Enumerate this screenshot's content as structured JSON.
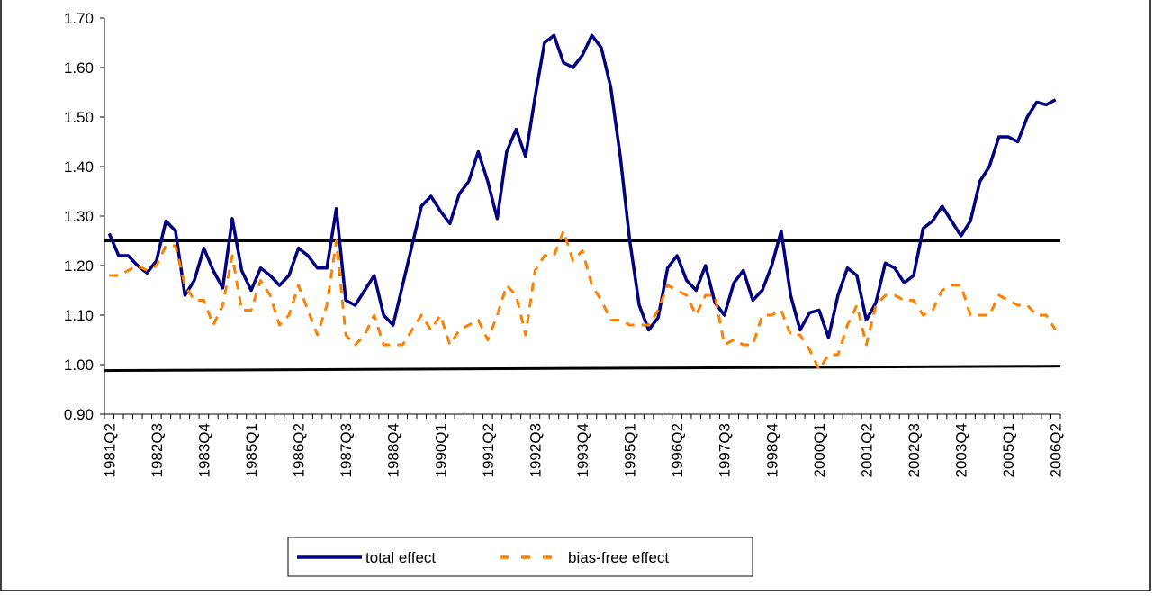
{
  "chart_data": {
    "type": "line",
    "categories": [
      "1981Q2",
      null,
      null,
      null,
      null,
      "1982Q3",
      null,
      null,
      null,
      null,
      "1983Q4",
      null,
      null,
      null,
      null,
      "1985Q1",
      null,
      null,
      null,
      null,
      "1986Q2",
      null,
      null,
      null,
      null,
      "1987Q3",
      null,
      null,
      null,
      null,
      "1988Q4",
      null,
      null,
      null,
      null,
      "1990Q1",
      null,
      null,
      null,
      null,
      "1991Q2",
      null,
      null,
      null,
      null,
      "1992Q3",
      null,
      null,
      null,
      null,
      "1993Q4",
      null,
      null,
      null,
      null,
      "1995Q1",
      null,
      null,
      null,
      null,
      "1996Q2",
      null,
      null,
      null,
      null,
      "1997Q3",
      null,
      null,
      null,
      null,
      "1998Q4",
      null,
      null,
      null,
      null,
      "2000Q1",
      null,
      null,
      null,
      null,
      "2001Q2",
      null,
      null,
      null,
      null,
      "2002Q3",
      null,
      null,
      null,
      null,
      "2003Q4",
      null,
      null,
      null,
      null,
      "2005Q1",
      null,
      null,
      null,
      null,
      "2006Q2"
    ],
    "series": [
      {
        "name": "total effect",
        "color": "#000080",
        "dash": false,
        "values": [
          1.265,
          1.22,
          1.22,
          1.2,
          1.185,
          1.21,
          1.29,
          1.27,
          1.14,
          1.17,
          1.235,
          1.19,
          1.155,
          1.295,
          1.19,
          1.15,
          1.195,
          1.18,
          1.16,
          1.18,
          1.235,
          1.22,
          1.195,
          1.195,
          1.315,
          1.13,
          1.12,
          1.15,
          1.18,
          1.1,
          1.08,
          1.16,
          1.24,
          1.32,
          1.34,
          1.31,
          1.285,
          1.345,
          1.37,
          1.43,
          1.37,
          1.295,
          1.43,
          1.475,
          1.42,
          1.54,
          1.65,
          1.665,
          1.61,
          1.6,
          1.625,
          1.665,
          1.64,
          1.56,
          1.42,
          1.25,
          1.12,
          1.07,
          1.095,
          1.195,
          1.22,
          1.17,
          1.15,
          1.2,
          1.125,
          1.1,
          1.165,
          1.19,
          1.13,
          1.15,
          1.2,
          1.27,
          1.14,
          1.07,
          1.105,
          1.11,
          1.055,
          1.14,
          1.195,
          1.18,
          1.09,
          1.125,
          1.205,
          1.195,
          1.165,
          1.18,
          1.275,
          1.29,
          1.32,
          1.29,
          1.26,
          1.29,
          1.37,
          1.4,
          1.46,
          1.46,
          1.45,
          1.5,
          1.53,
          1.525,
          1.535
        ]
      },
      {
        "name": "bias-free effect",
        "color": "#ff8000",
        "dash": true,
        "values": [
          1.18,
          1.18,
          1.19,
          1.2,
          1.19,
          1.2,
          1.24,
          1.24,
          1.16,
          1.13,
          1.13,
          1.08,
          1.12,
          1.22,
          1.11,
          1.11,
          1.17,
          1.14,
          1.08,
          1.1,
          1.16,
          1.11,
          1.06,
          1.12,
          1.25,
          1.06,
          1.04,
          1.06,
          1.1,
          1.04,
          1.04,
          1.04,
          1.07,
          1.1,
          1.07,
          1.1,
          1.04,
          1.07,
          1.08,
          1.09,
          1.05,
          1.1,
          1.16,
          1.14,
          1.06,
          1.19,
          1.22,
          1.22,
          1.27,
          1.21,
          1.23,
          1.16,
          1.13,
          1.09,
          1.09,
          1.08,
          1.08,
          1.08,
          1.11,
          1.16,
          1.15,
          1.14,
          1.1,
          1.14,
          1.14,
          1.04,
          1.05,
          1.04,
          1.04,
          1.1,
          1.1,
          1.11,
          1.06,
          1.06,
          1.03,
          0.99,
          1.02,
          1.02,
          1.08,
          1.12,
          1.04,
          1.12,
          1.14,
          1.14,
          1.13,
          1.13,
          1.1,
          1.11,
          1.15,
          1.16,
          1.16,
          1.1,
          1.1,
          1.1,
          1.14,
          1.13,
          1.12,
          1.12,
          1.1,
          1.1,
          1.07
        ]
      }
    ],
    "reference_lines": [
      {
        "color": "#000000",
        "values": [
          1.25,
          1.25
        ]
      },
      {
        "color": "#000000",
        "values": [
          0.988,
          0.997
        ]
      }
    ],
    "ylim": [
      0.9,
      1.7
    ],
    "yticks": [
      {
        "value": 0.9,
        "label": "0.90"
      },
      {
        "value": 1.0,
        "label": "1.00"
      },
      {
        "value": 1.1,
        "label": "1.10"
      },
      {
        "value": 1.2,
        "label": "1.20"
      },
      {
        "value": 1.3,
        "label": "1.30"
      },
      {
        "value": 1.4,
        "label": "1.40"
      },
      {
        "value": 1.5,
        "label": "1.50"
      },
      {
        "value": 1.6,
        "label": "1.60"
      },
      {
        "value": 1.7,
        "label": "1.70"
      }
    ],
    "grid": false,
    "legend": "bottom"
  }
}
